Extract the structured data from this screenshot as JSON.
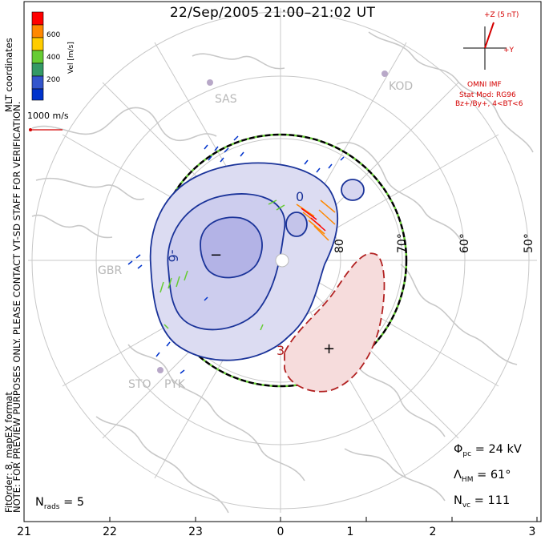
{
  "title": "22/Sep/2005 21:00–21:02 UT",
  "side_note": "NOTE: FOR PREVIEW PURPOSES ONLY. PLEASE CONTACT VT-SD STAFF FOR VERIFICATION.",
  "fit_order": "FitOrder: 8, mapEX format",
  "coordinates_label": "MLT coordinates",
  "colorbar": {
    "unit": "Vel [m/s]",
    "ticks": [
      "600",
      "400",
      "200"
    ],
    "colors": [
      "#ff0000",
      "#ff8800",
      "#ffcc00",
      "#66cc33",
      "#339966",
      "#3355cc",
      "#0033cc"
    ]
  },
  "ref_vector_label": "1000 m/s",
  "imf": {
    "z_label": "+Z (5 nT)",
    "y_label": "+Y",
    "source": "OMNI IMF",
    "stat_mod": "Stat Mod: RG96",
    "condition": "Bz+/By+, 4<BT<6"
  },
  "stations": [
    "SAS",
    "KOD",
    "GBR",
    "STO",
    "PYK"
  ],
  "lat_labels": [
    "80",
    "70°",
    "60°",
    "50°"
  ],
  "contour_labels": {
    "min_sign": "−",
    "max_sign": "+",
    "neg_contour": "-6",
    "pos_contour": "3",
    "pos_contour2": "0"
  },
  "stats": {
    "phi_pc_label": "Φ",
    "phi_pc_sub": "pc",
    "phi_pc_value": " = 24 kV",
    "lambda_label": "Λ",
    "lambda_sub": "HM",
    "lambda_value": " = 61°",
    "nvc_label": "N",
    "nvc_sub": "vc",
    "nvc_value": " = 111"
  },
  "nrads": {
    "label": "N",
    "sub": "rads",
    "value": " = 5"
  },
  "mlt_ticks": [
    "21",
    "22",
    "23",
    "0",
    "1",
    "2",
    "3"
  ],
  "colors": {
    "neg_potential": "#1a3399",
    "pos_potential": "#b22222",
    "hmb": "#000000",
    "hmb_dash": "#66cc33",
    "land": "#c8c8c8"
  }
}
